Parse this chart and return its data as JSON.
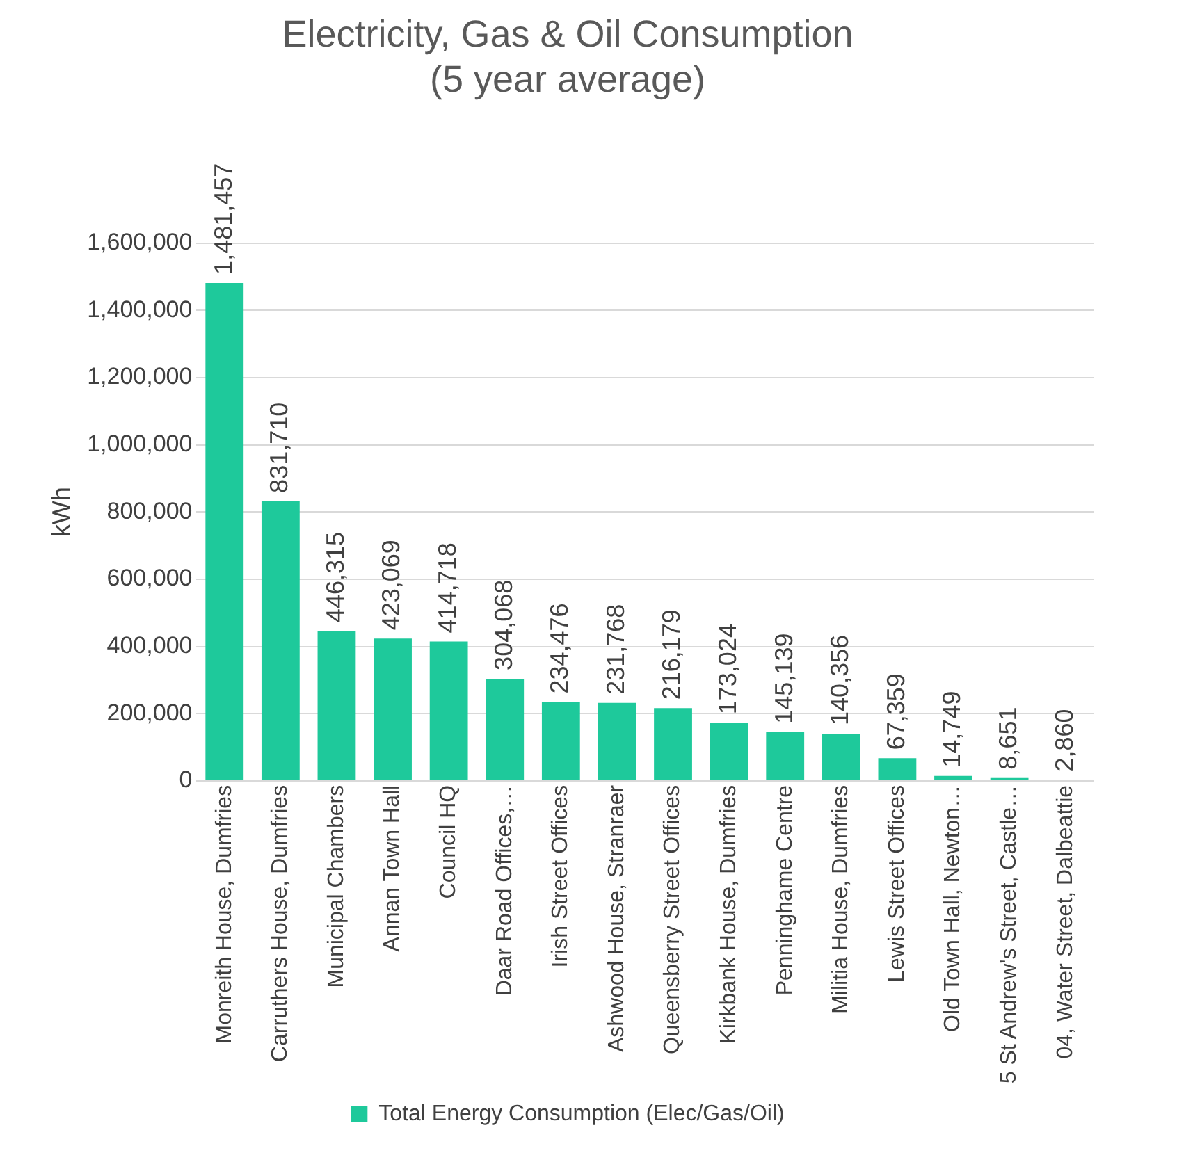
{
  "chart_data": {
    "type": "bar",
    "title": "Electricity, Gas & Oil Consumption\n(5 year average)",
    "ylabel": "kWh",
    "categories": [
      "Monreith House, Dumfries",
      "Carruthers House, Dumfries",
      "Municipal Chambers",
      "Annan Town Hall",
      "Council HQ",
      "Daar Road Offices,…",
      "Irish Street Offices",
      "Ashwood House, Stranraer",
      "Queensberry Street Offices",
      "Kirkbank House, Dumfries",
      "Penninghame Centre",
      "Militia House, Dumfries",
      "Lewis Street Offices",
      "Old Town Hall, Newton…",
      "5 St Andrew's Street, Castle…",
      "04, Water Street, Dalbeattie"
    ],
    "series": [
      {
        "name": "Total Energy Consumption (Elec/Gas/Oil)",
        "color": "#1ec99b",
        "values": [
          1481457,
          831710,
          446315,
          423069,
          414718,
          304068,
          234476,
          231768,
          216179,
          173024,
          145139,
          140356,
          67359,
          14749,
          8651,
          2860
        ],
        "value_labels": [
          "1,481,457",
          "831,710",
          "446,315",
          "423,069",
          "414,718",
          "304,068",
          "234,476",
          "231,768",
          "216,179",
          "173,024",
          "145,139",
          "140,356",
          "67,359",
          "14,749",
          "8,651",
          "2,860"
        ]
      }
    ],
    "ylim": [
      0,
      1600000
    ],
    "yticks": [
      {
        "value": 0,
        "label": "0"
      },
      {
        "value": 200000,
        "label": "200,000"
      },
      {
        "value": 400000,
        "label": "400,000"
      },
      {
        "value": 600000,
        "label": "600,000"
      },
      {
        "value": 800000,
        "label": "800,000"
      },
      {
        "value": 1000000,
        "label": "1,000,000"
      },
      {
        "value": 1200000,
        "label": "1,200,000"
      },
      {
        "value": 1400000,
        "label": "1,400,000"
      },
      {
        "value": 1600000,
        "label": "1,600,000"
      }
    ],
    "grid": "y",
    "legend": "bottom"
  }
}
